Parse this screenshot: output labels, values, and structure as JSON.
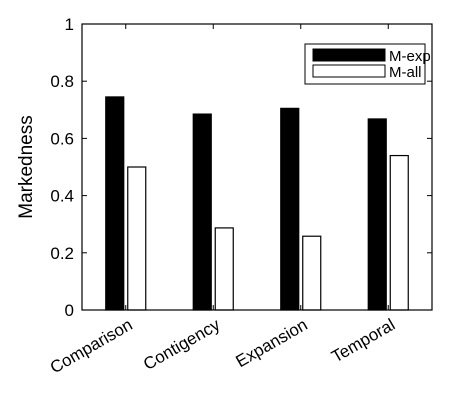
{
  "chart_data": {
    "type": "bar",
    "categories": [
      "Comparison",
      "Contigency",
      "Expansion",
      "Temporal"
    ],
    "series": [
      {
        "name": "M-exp",
        "values": [
          0.745,
          0.685,
          0.705,
          0.668
        ],
        "color": "#000000"
      },
      {
        "name": "M-all",
        "values": [
          0.5,
          0.287,
          0.258,
          0.54
        ],
        "color": "#ffffff"
      }
    ],
    "title": "",
    "xlabel": "",
    "ylabel": "Markedness",
    "ylim": [
      0,
      1
    ],
    "yticks": [
      0,
      0.2,
      0.4,
      0.6,
      0.8,
      1
    ],
    "ytick_labels": [
      "0",
      "0.2",
      "0.4",
      "0.6",
      "0.8",
      "1"
    ],
    "grid": false,
    "legend_position": "top-right"
  }
}
